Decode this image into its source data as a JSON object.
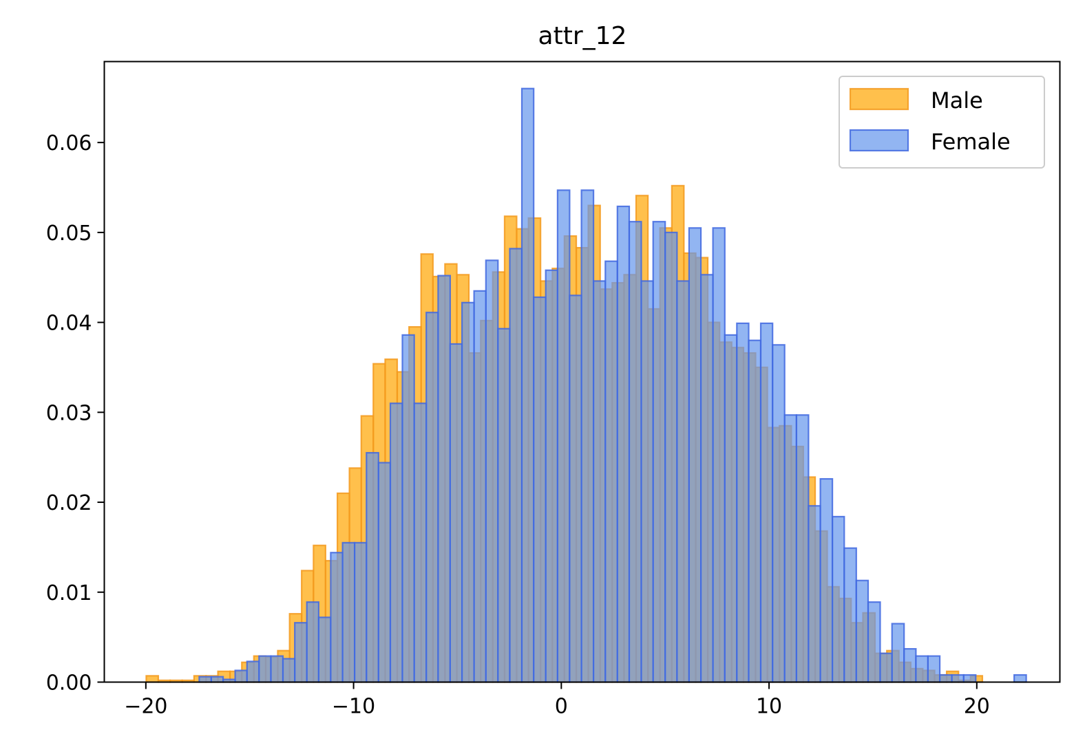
{
  "chart_data": {
    "type": "bar",
    "title": "attr_12",
    "xlabel": "",
    "ylabel": "",
    "xlim": [
      -22,
      24
    ],
    "ylim": [
      0,
      0.069
    ],
    "x_ticks": [
      -20,
      -10,
      0,
      10,
      20
    ],
    "x_tick_labels": [
      "−20",
      "−10",
      "0",
      "10",
      "20"
    ],
    "y_ticks": [
      0,
      0.01,
      0.02,
      0.03,
      0.04,
      0.05,
      0.06
    ],
    "y_tick_labels": [
      "0.00",
      "0.01",
      "0.02",
      "0.03",
      "0.04",
      "0.05",
      "0.06"
    ],
    "grid": false,
    "legend_position": "top-right",
    "colors": {
      "Male": "#FFA500",
      "Female": "#6495ED",
      "Male_edge": "#F39A1F",
      "Female_edge": "#4169E1"
    },
    "series": [
      {
        "name": "Male",
        "bins": [
          [
            -19.98,
            -19.4,
            0.0007
          ],
          [
            -19.4,
            -18.83,
            0.0002
          ],
          [
            -18.83,
            -18.25,
            0.0002
          ],
          [
            -18.25,
            -17.68,
            0.0002
          ],
          [
            -17.68,
            -17.1,
            0.0007
          ],
          [
            -17.1,
            -16.53,
            0.0007
          ],
          [
            -16.53,
            -15.95,
            0.0012
          ],
          [
            -15.95,
            -15.38,
            0.0012
          ],
          [
            -15.38,
            -14.8,
            0.0022
          ],
          [
            -14.8,
            -14.23,
            0.0029
          ],
          [
            -14.23,
            -13.65,
            0.0028
          ],
          [
            -13.65,
            -13.08,
            0.0035
          ],
          [
            -13.08,
            -12.5,
            0.0076
          ],
          [
            -12.5,
            -11.93,
            0.0124
          ],
          [
            -11.93,
            -11.35,
            0.0152
          ],
          [
            -11.35,
            -10.78,
            0.0135
          ],
          [
            -10.78,
            -10.2,
            0.021
          ],
          [
            -10.2,
            -9.63,
            0.0238
          ],
          [
            -9.63,
            -9.05,
            0.0296
          ],
          [
            -9.05,
            -8.48,
            0.0354
          ],
          [
            -8.48,
            -7.9,
            0.0359
          ],
          [
            -7.9,
            -7.33,
            0.0345
          ],
          [
            -7.33,
            -6.75,
            0.0395
          ],
          [
            -6.75,
            -6.18,
            0.0476
          ],
          [
            -6.18,
            -5.6,
            0.0451
          ],
          [
            -5.6,
            -5.03,
            0.0465
          ],
          [
            -5.03,
            -4.45,
            0.0453
          ],
          [
            -4.45,
            -3.88,
            0.0366
          ],
          [
            -3.88,
            -3.3,
            0.0402
          ],
          [
            -3.3,
            -2.73,
            0.0456
          ],
          [
            -2.73,
            -2.15,
            0.0518
          ],
          [
            -2.15,
            -1.58,
            0.0504
          ],
          [
            -1.58,
            -1.0,
            0.0516
          ],
          [
            -1.0,
            -0.43,
            0.0446
          ],
          [
            -0.43,
            0.15,
            0.046
          ],
          [
            0.15,
            0.72,
            0.0496
          ],
          [
            0.72,
            1.3,
            0.0483
          ],
          [
            1.3,
            1.87,
            0.053
          ],
          [
            1.87,
            2.45,
            0.0437
          ],
          [
            2.45,
            3.02,
            0.0444
          ],
          [
            3.02,
            3.6,
            0.0453
          ],
          [
            3.6,
            4.17,
            0.0541
          ],
          [
            4.17,
            4.75,
            0.0415
          ],
          [
            4.75,
            5.32,
            0.0505
          ],
          [
            5.32,
            5.9,
            0.0552
          ],
          [
            5.9,
            6.47,
            0.0477
          ],
          [
            6.47,
            7.05,
            0.0472
          ],
          [
            7.05,
            7.62,
            0.04
          ],
          [
            7.62,
            8.2,
            0.0378
          ],
          [
            8.2,
            8.77,
            0.0372
          ],
          [
            8.77,
            9.35,
            0.0366
          ],
          [
            9.35,
            9.92,
            0.035
          ],
          [
            9.92,
            10.5,
            0.0283
          ],
          [
            10.5,
            11.07,
            0.0285
          ],
          [
            11.07,
            11.65,
            0.0262
          ],
          [
            11.65,
            12.22,
            0.0228
          ],
          [
            12.22,
            12.8,
            0.0168
          ],
          [
            12.8,
            13.37,
            0.0106
          ],
          [
            13.37,
            13.95,
            0.0093
          ],
          [
            13.95,
            14.52,
            0.0066
          ],
          [
            14.52,
            15.1,
            0.0077
          ],
          [
            15.1,
            15.67,
            0.0032
          ],
          [
            15.67,
            16.25,
            0.0035
          ],
          [
            16.25,
            16.82,
            0.0022
          ],
          [
            16.82,
            17.4,
            0.0015
          ],
          [
            17.4,
            17.97,
            0.0013
          ],
          [
            17.97,
            18.55,
            0.0008
          ],
          [
            18.55,
            19.12,
            0.0012
          ],
          [
            19.12,
            19.7,
            0.0002
          ],
          [
            19.7,
            20.27,
            0.0007
          ]
        ]
      },
      {
        "name": "Female",
        "bins": [
          [
            -17.43,
            -16.85,
            0.0006
          ],
          [
            -16.85,
            -16.28,
            0.0006
          ],
          [
            -16.28,
            -15.7,
            0.0003
          ],
          [
            -15.7,
            -15.13,
            0.0013
          ],
          [
            -15.13,
            -14.55,
            0.0023
          ],
          [
            -14.55,
            -13.98,
            0.0029
          ],
          [
            -13.98,
            -13.4,
            0.0029
          ],
          [
            -13.4,
            -12.83,
            0.0026
          ],
          [
            -12.83,
            -12.25,
            0.0066
          ],
          [
            -12.25,
            -11.68,
            0.0089
          ],
          [
            -11.68,
            -11.1,
            0.0072
          ],
          [
            -11.1,
            -10.53,
            0.0144
          ],
          [
            -10.53,
            -9.95,
            0.0155
          ],
          [
            -9.95,
            -9.38,
            0.0155
          ],
          [
            -9.38,
            -8.8,
            0.0255
          ],
          [
            -8.8,
            -8.23,
            0.0244
          ],
          [
            -8.23,
            -7.65,
            0.031
          ],
          [
            -7.65,
            -7.08,
            0.0386
          ],
          [
            -7.08,
            -6.5,
            0.031
          ],
          [
            -6.5,
            -5.93,
            0.0411
          ],
          [
            -5.93,
            -5.35,
            0.0452
          ],
          [
            -5.35,
            -4.78,
            0.0376
          ],
          [
            -4.78,
            -4.2,
            0.0422
          ],
          [
            -4.2,
            -3.63,
            0.0435
          ],
          [
            -3.63,
            -3.05,
            0.0469
          ],
          [
            -3.05,
            -2.48,
            0.0393
          ],
          [
            -2.48,
            -1.9,
            0.0482
          ],
          [
            -1.9,
            -1.33,
            0.066
          ],
          [
            -1.33,
            -0.75,
            0.0428
          ],
          [
            -0.75,
            -0.18,
            0.0458
          ],
          [
            -0.18,
            0.4,
            0.0547
          ],
          [
            0.4,
            0.97,
            0.043
          ],
          [
            0.97,
            1.55,
            0.0547
          ],
          [
            1.55,
            2.12,
            0.0446
          ],
          [
            2.12,
            2.7,
            0.0468
          ],
          [
            2.7,
            3.27,
            0.0529
          ],
          [
            3.27,
            3.85,
            0.0512
          ],
          [
            3.85,
            4.42,
            0.0446
          ],
          [
            4.42,
            5.0,
            0.0512
          ],
          [
            5.0,
            5.57,
            0.05
          ],
          [
            5.57,
            6.15,
            0.0446
          ],
          [
            6.15,
            6.72,
            0.0505
          ],
          [
            6.72,
            7.3,
            0.0453
          ],
          [
            7.3,
            7.87,
            0.0505
          ],
          [
            7.87,
            8.45,
            0.0386
          ],
          [
            8.45,
            9.02,
            0.0399
          ],
          [
            9.02,
            9.6,
            0.038
          ],
          [
            9.6,
            10.17,
            0.0399
          ],
          [
            10.17,
            10.75,
            0.0375
          ],
          [
            10.75,
            11.32,
            0.0297
          ],
          [
            11.32,
            11.9,
            0.0297
          ],
          [
            11.9,
            12.47,
            0.0196
          ],
          [
            12.47,
            13.05,
            0.0226
          ],
          [
            13.05,
            13.62,
            0.0184
          ],
          [
            13.62,
            14.2,
            0.0149
          ],
          [
            14.2,
            14.77,
            0.0113
          ],
          [
            14.77,
            15.35,
            0.0089
          ],
          [
            15.35,
            15.92,
            0.0032
          ],
          [
            15.92,
            16.5,
            0.0065
          ],
          [
            16.5,
            17.07,
            0.0037
          ],
          [
            17.07,
            17.65,
            0.0029
          ],
          [
            17.65,
            18.22,
            0.0029
          ],
          [
            18.22,
            18.8,
            0.0008
          ],
          [
            18.8,
            19.37,
            0.0008
          ],
          [
            19.37,
            19.95,
            0.0008
          ],
          [
            21.8,
            22.38,
            0.0008
          ]
        ]
      }
    ]
  }
}
